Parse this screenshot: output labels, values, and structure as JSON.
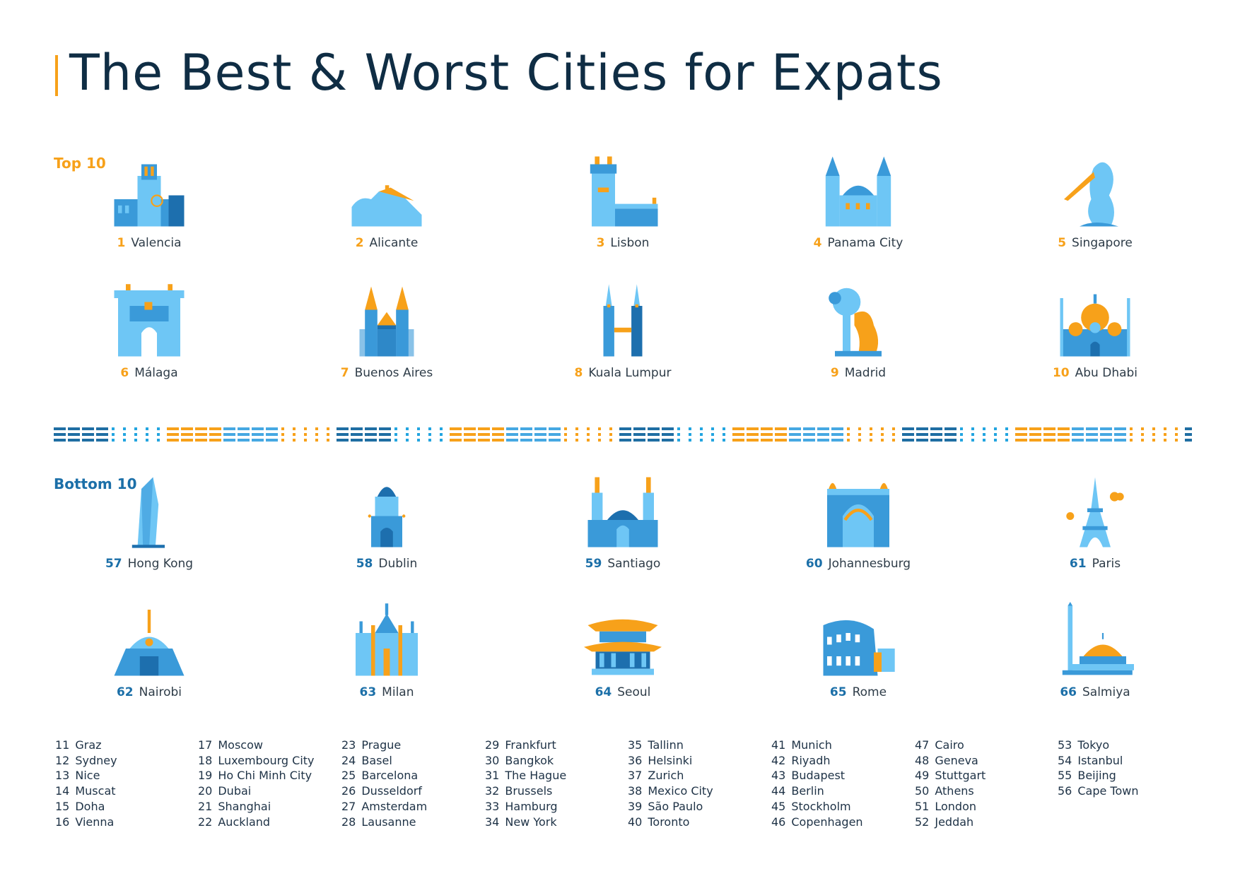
{
  "title": "The Best & Worst Cities for Expats",
  "colors": {
    "accent": "#f7a11a",
    "dark_blue": "#1b6fa8",
    "mid_blue": "#3a9ad9",
    "light_blue": "#6ec6f5",
    "text": "#0f2d44"
  },
  "top10": {
    "heading": "Top 10",
    "cities": [
      {
        "rank": "1",
        "name": "Valencia",
        "icon": "valencia-cathedral-icon"
      },
      {
        "rank": "2",
        "name": "Alicante",
        "icon": "alicante-castle-icon"
      },
      {
        "rank": "3",
        "name": "Lisbon",
        "icon": "belem-tower-icon"
      },
      {
        "rank": "4",
        "name": "Panama City",
        "icon": "panama-cathedral-icon"
      },
      {
        "rank": "5",
        "name": "Singapore",
        "icon": "merlion-icon"
      },
      {
        "rank": "6",
        "name": "Málaga",
        "icon": "malaga-fortress-icon"
      },
      {
        "rank": "7",
        "name": "Buenos Aires",
        "icon": "buenos-aires-cathedral-icon"
      },
      {
        "rank": "8",
        "name": "Kuala Lumpur",
        "icon": "petronas-towers-icon"
      },
      {
        "rank": "9",
        "name": "Madrid",
        "icon": "bear-and-tree-icon"
      },
      {
        "rank": "10",
        "name": "Abu Dhabi",
        "icon": "grand-mosque-icon"
      }
    ]
  },
  "bottom10": {
    "heading": "Bottom 10",
    "cities": [
      {
        "rank": "57",
        "name": "Hong Kong",
        "icon": "skyscraper-icon"
      },
      {
        "rank": "58",
        "name": "Dublin",
        "icon": "dublin-dome-icon"
      },
      {
        "rank": "59",
        "name": "Santiago",
        "icon": "santiago-cathedral-icon"
      },
      {
        "rank": "60",
        "name": "Johannesburg",
        "icon": "johannesburg-arch-icon"
      },
      {
        "rank": "61",
        "name": "Paris",
        "icon": "eiffel-tower-icon"
      },
      {
        "rank": "62",
        "name": "Nairobi",
        "icon": "nairobi-conference-centre-icon"
      },
      {
        "rank": "63",
        "name": "Milan",
        "icon": "milan-duomo-icon"
      },
      {
        "rank": "64",
        "name": "Seoul",
        "icon": "pagoda-icon"
      },
      {
        "rank": "65",
        "name": "Rome",
        "icon": "colosseum-icon"
      },
      {
        "rank": "66",
        "name": "Salmiya",
        "icon": "salmiya-mosque-icon"
      }
    ]
  },
  "ranking_list": [
    [
      {
        "rank": "11",
        "name": "Graz"
      },
      {
        "rank": "12",
        "name": "Sydney"
      },
      {
        "rank": "13",
        "name": "Nice"
      },
      {
        "rank": "14",
        "name": "Muscat"
      },
      {
        "rank": "15",
        "name": "Doha"
      },
      {
        "rank": "16",
        "name": "Vienna"
      }
    ],
    [
      {
        "rank": "17",
        "name": "Moscow"
      },
      {
        "rank": "18",
        "name": "Luxembourg City"
      },
      {
        "rank": "19",
        "name": "Ho Chi Minh City"
      },
      {
        "rank": "20",
        "name": "Dubai"
      },
      {
        "rank": "21",
        "name": "Shanghai"
      },
      {
        "rank": "22",
        "name": "Auckland"
      }
    ],
    [
      {
        "rank": "23",
        "name": "Prague"
      },
      {
        "rank": "24",
        "name": "Basel"
      },
      {
        "rank": "25",
        "name": "Barcelona"
      },
      {
        "rank": "26",
        "name": "Dusseldorf"
      },
      {
        "rank": "27",
        "name": "Amsterdam"
      },
      {
        "rank": "28",
        "name": "Lausanne"
      }
    ],
    [
      {
        "rank": "29",
        "name": "Frankfurt"
      },
      {
        "rank": "30",
        "name": "Bangkok"
      },
      {
        "rank": "31",
        "name": "The Hague"
      },
      {
        "rank": "32",
        "name": "Brussels"
      },
      {
        "rank": "33",
        "name": "Hamburg"
      },
      {
        "rank": "34",
        "name": "New York"
      }
    ],
    [
      {
        "rank": "35",
        "name": "Tallinn"
      },
      {
        "rank": "36",
        "name": "Helsinki"
      },
      {
        "rank": "37",
        "name": "Zurich"
      },
      {
        "rank": "38",
        "name": "Mexico City"
      },
      {
        "rank": "39",
        "name": "São Paulo"
      },
      {
        "rank": "40",
        "name": "Toronto"
      }
    ],
    [
      {
        "rank": "41",
        "name": "Munich"
      },
      {
        "rank": "42",
        "name": "Riyadh"
      },
      {
        "rank": "43",
        "name": "Budapest"
      },
      {
        "rank": "44",
        "name": "Berlin"
      },
      {
        "rank": "45",
        "name": "Stockholm"
      },
      {
        "rank": "46",
        "name": "Copenhagen"
      }
    ],
    [
      {
        "rank": "47",
        "name": "Cairo"
      },
      {
        "rank": "48",
        "name": "Geneva"
      },
      {
        "rank": "49",
        "name": "Stuttgart"
      },
      {
        "rank": "50",
        "name": "Athens"
      },
      {
        "rank": "51",
        "name": "London"
      },
      {
        "rank": "52",
        "name": "Jeddah"
      }
    ],
    [
      {
        "rank": "53",
        "name": "Tokyo"
      },
      {
        "rank": "54",
        "name": "Istanbul"
      },
      {
        "rank": "55",
        "name": "Beijing"
      },
      {
        "rank": "56",
        "name": "Cape Town"
      }
    ]
  ]
}
